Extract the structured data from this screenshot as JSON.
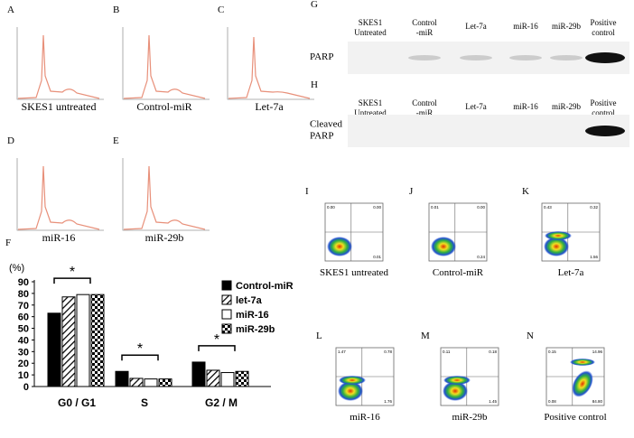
{
  "histograms": [
    {
      "label": "A",
      "caption": "SKES1 untreated"
    },
    {
      "label": "B",
      "caption": "Control-miR"
    },
    {
      "label": "C",
      "caption": "Let-7a"
    },
    {
      "label": "D",
      "caption": "miR-16"
    },
    {
      "label": "E",
      "caption": "miR-29b"
    }
  ],
  "bar_panel_label": "F",
  "chart_data": {
    "type": "bar",
    "y_unit_label": "(%)",
    "categories": [
      "G0 / G1",
      "S",
      "G2 / M"
    ],
    "series": [
      {
        "name": "Control-miR",
        "color": "#000000",
        "pattern": "solid",
        "values": [
          63,
          13,
          21
        ]
      },
      {
        "name": "let-7a",
        "color": "#000000",
        "pattern": "hatch",
        "values": [
          77,
          7,
          14
        ]
      },
      {
        "name": "miR-16",
        "color": "#ffffff",
        "pattern": "open",
        "values": [
          79,
          6.5,
          12
        ]
      },
      {
        "name": "miR-29b",
        "color": "#000000",
        "pattern": "checker",
        "values": [
          79,
          6.5,
          13
        ]
      }
    ],
    "ylim": [
      0,
      90
    ],
    "yticks": [
      0,
      10,
      20,
      30,
      40,
      50,
      60,
      70,
      80,
      90
    ],
    "annotations": [
      "*",
      "*",
      "*"
    ]
  },
  "blots": [
    {
      "label": "G",
      "row_label": [
        "PARP"
      ],
      "columns": [
        [
          "SKES1",
          "Untreated"
        ],
        [
          "Control",
          "-miR"
        ],
        [
          "Let-7a"
        ],
        [
          "miR-16"
        ],
        [
          "miR-29b"
        ],
        [
          "Positive",
          "control"
        ]
      ]
    },
    {
      "label": "H",
      "row_label": [
        "Cleaved",
        "PARP"
      ],
      "columns": [
        [
          "SKES1",
          "Untreated"
        ],
        [
          "Control",
          "-miR"
        ],
        [
          "Let-7a"
        ],
        [
          "miR-16"
        ],
        [
          "miR-29b"
        ],
        [
          "Positive",
          "control"
        ]
      ]
    }
  ],
  "flow": [
    {
      "label": "I",
      "caption": "SKES1 untreated",
      "quadrants": {
        "ul": "0.00",
        "ur": "0.00",
        "lr": "0.01"
      }
    },
    {
      "label": "J",
      "caption": "Control-miR",
      "quadrants": {
        "ul": "0.01",
        "ur": "0.00",
        "lr": "0.24"
      }
    },
    {
      "label": "K",
      "caption": "Let-7a",
      "quadrants": {
        "ul": "0.43",
        "ur": "0.32",
        "lr": "1.56"
      }
    },
    {
      "label": "L",
      "caption": "miR-16",
      "quadrants": {
        "ul": "1.47",
        "ur": "0.78",
        "lr": "1.76"
      }
    },
    {
      "label": "M",
      "caption": "miR-29b",
      "quadrants": {
        "ul": "0.11",
        "ur": "0.18",
        "lr": "1.45"
      }
    },
    {
      "label": "N",
      "caption": "Positive control",
      "quadrants": {
        "ul": "0.15",
        "ur": "14.96",
        "ll": "0.08",
        "lr": "84.80"
      }
    }
  ]
}
